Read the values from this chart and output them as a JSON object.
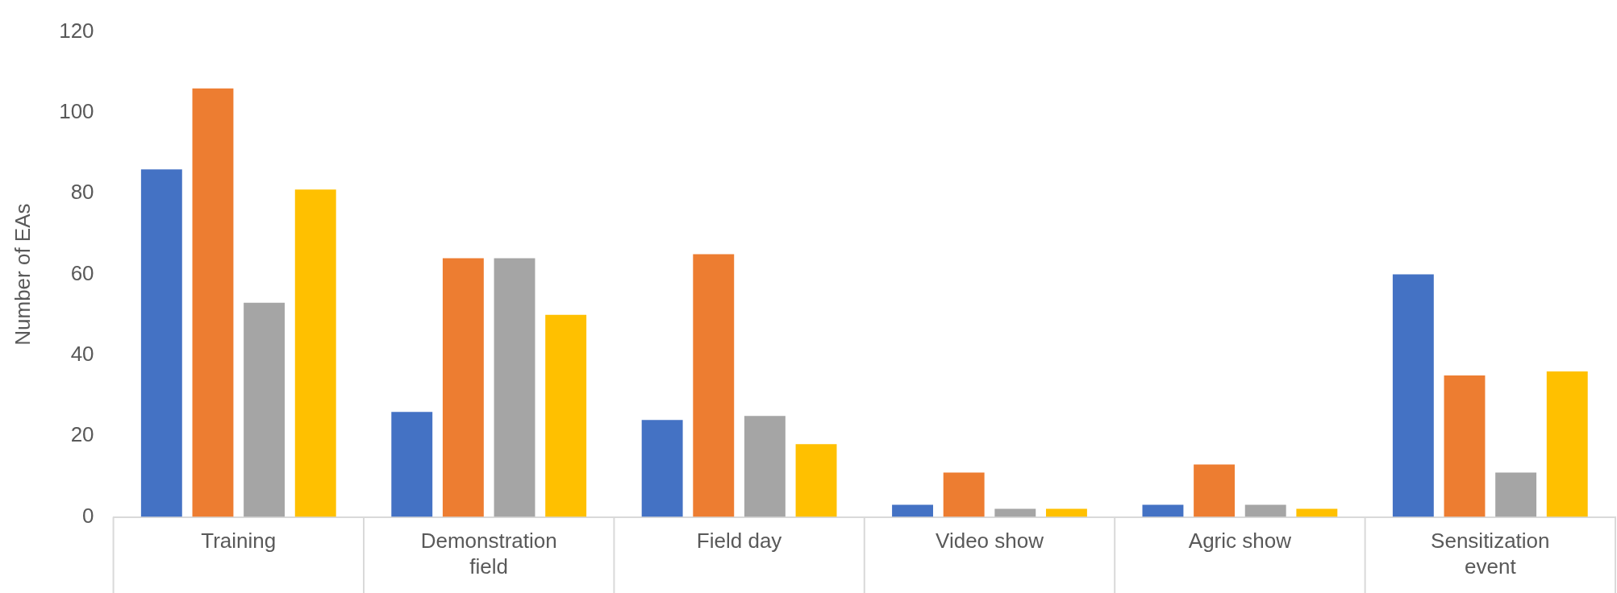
{
  "chart_data": {
    "type": "bar",
    "ylabel": "Number of EAs",
    "categories": [
      "Training",
      "Demonstration field",
      "Field day",
      "Video show",
      "Agric show",
      "Sensitization event"
    ],
    "series": [
      {
        "color": "#4472c4",
        "values": [
          86,
          26,
          24,
          3,
          3,
          60
        ]
      },
      {
        "color": "#ed7d31",
        "values": [
          106,
          64,
          65,
          11,
          13,
          35
        ]
      },
      {
        "color": "#a5a5a5",
        "values": [
          53,
          64,
          25,
          2,
          3,
          11
        ]
      },
      {
        "color": "#ffc000",
        "values": [
          81,
          50,
          18,
          2,
          2,
          36
        ]
      }
    ],
    "ylim": [
      0,
      120
    ],
    "yticks": [
      0,
      20,
      40,
      60,
      80,
      100,
      120
    ],
    "legend": false
  }
}
